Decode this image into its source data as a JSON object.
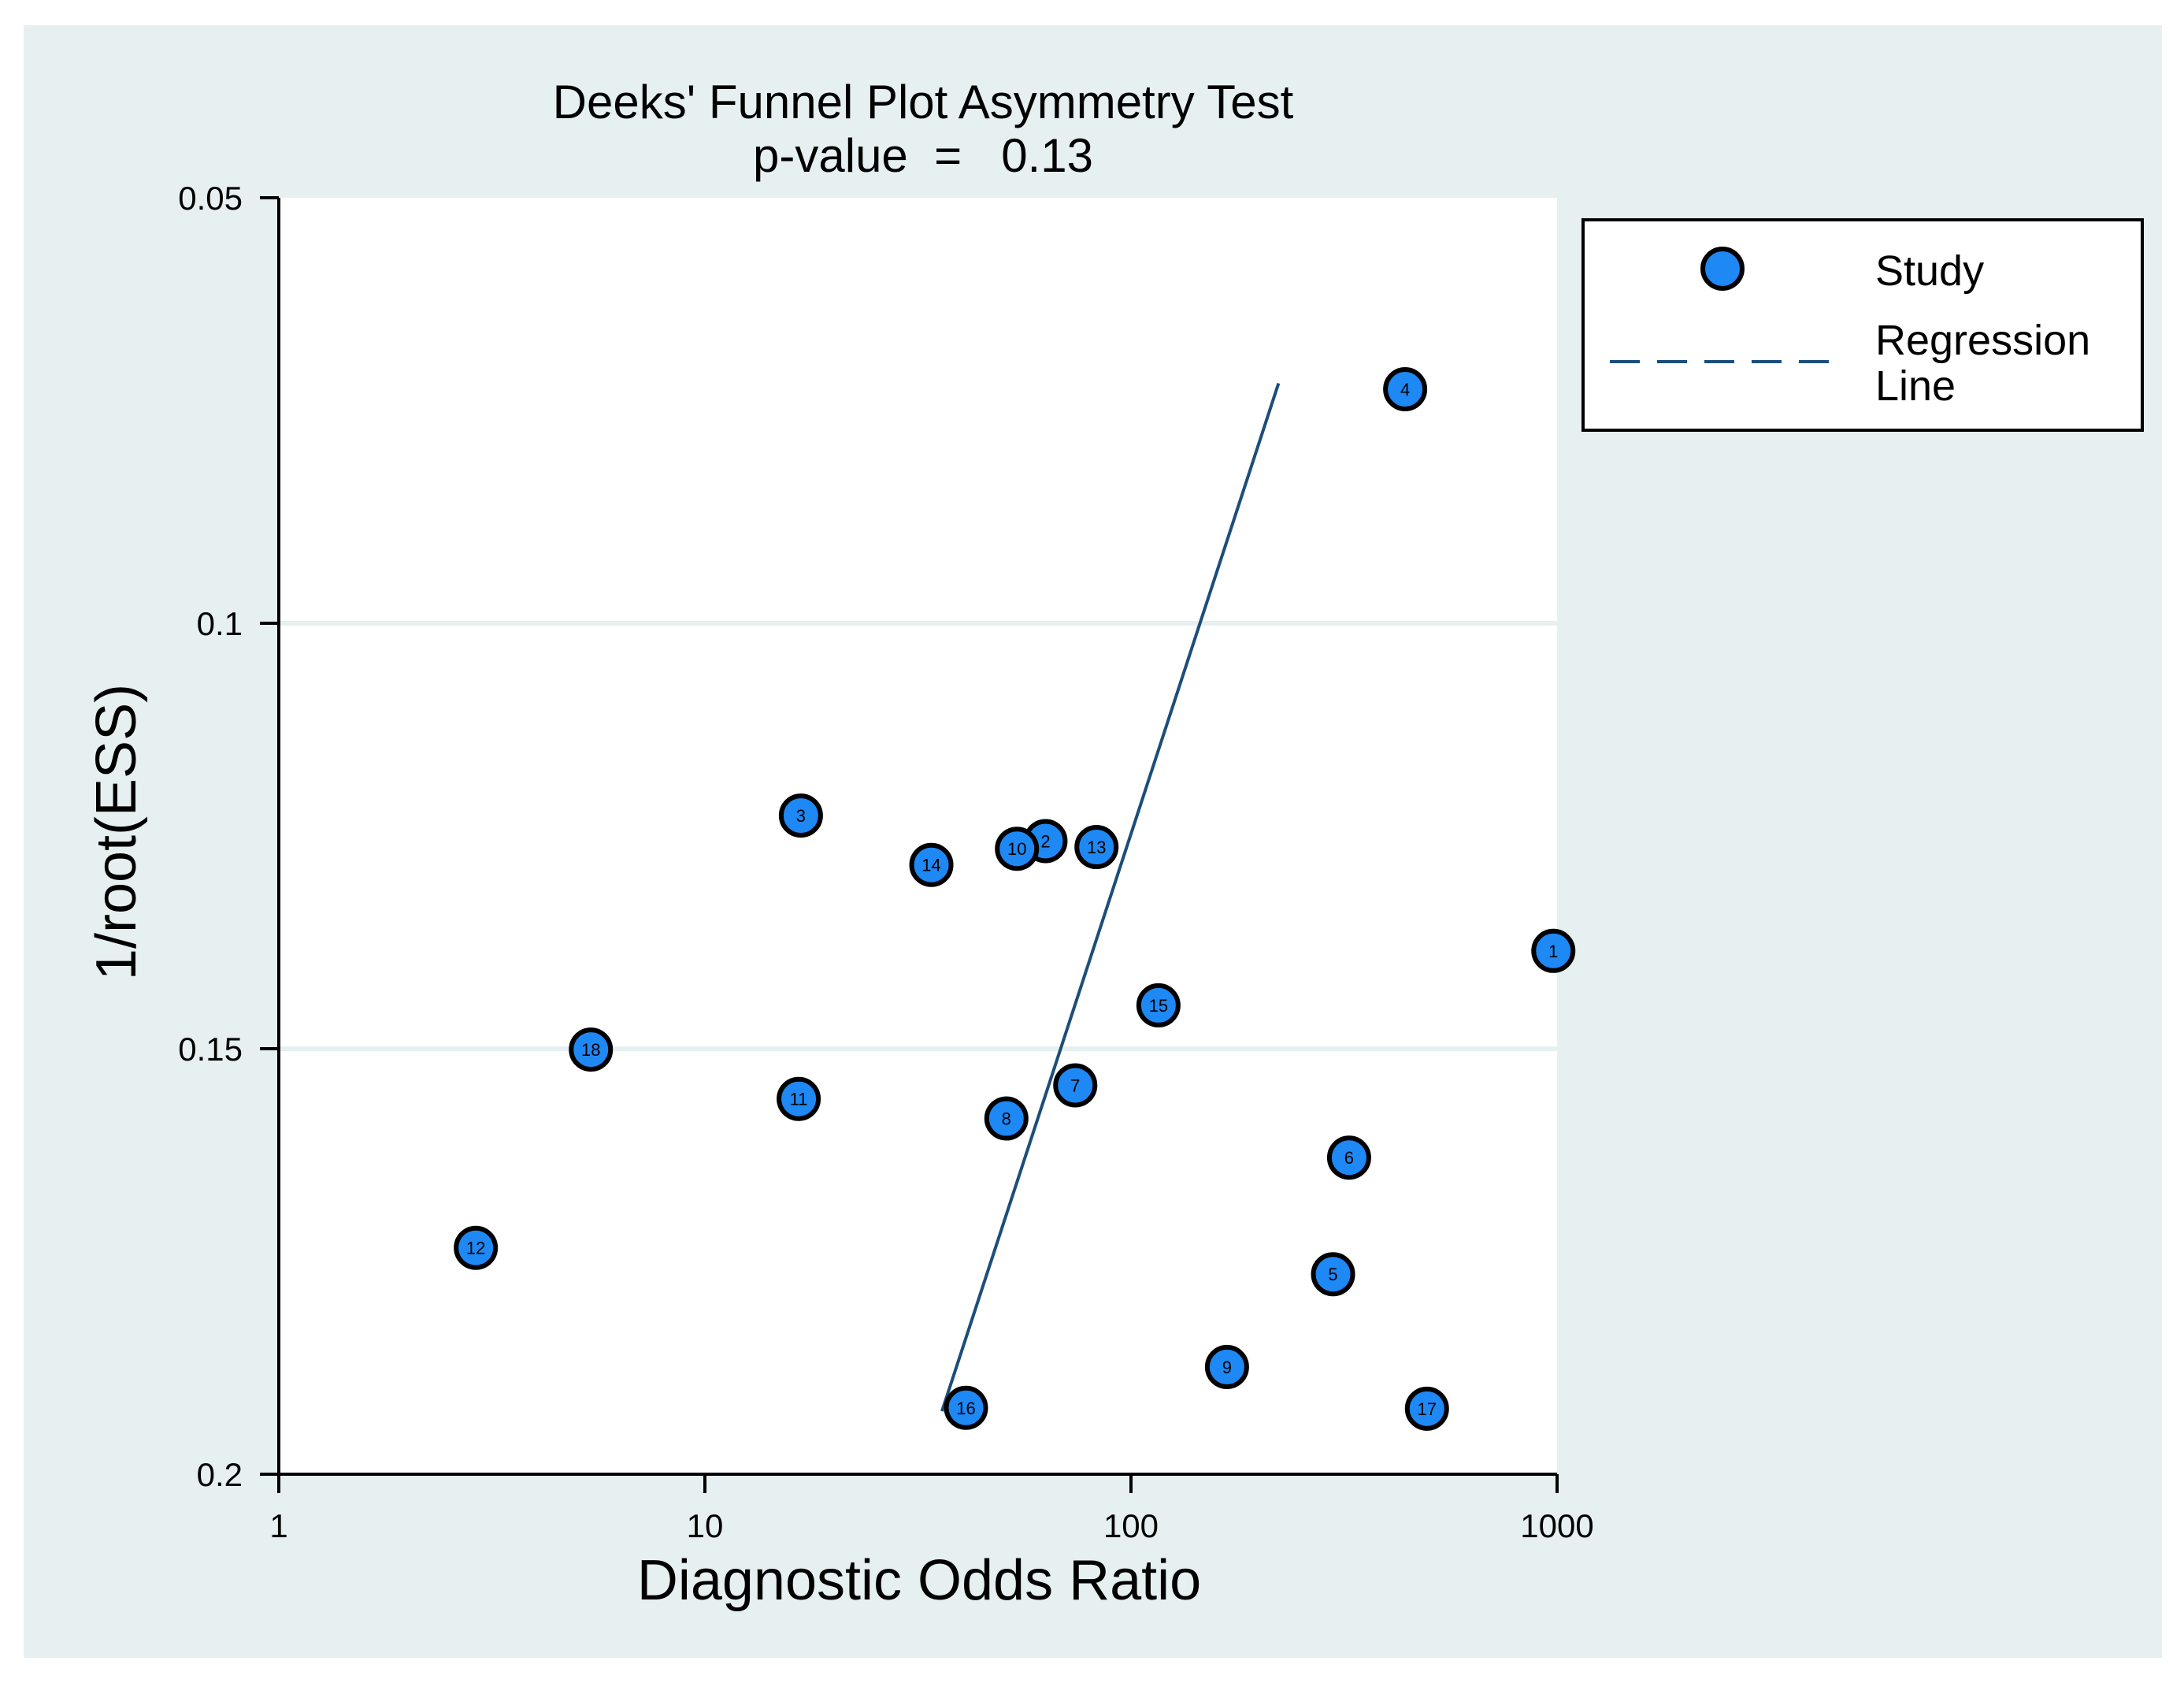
{
  "chart_data": {
    "type": "scatter",
    "title": "Deeks' Funnel Plot Asymmetry Test",
    "subtitle": "p-value  =   0.13",
    "xlabel": "Diagnostic Odds Ratio",
    "ylabel": "1/root(ESS)",
    "x_scale": "log",
    "xlim": [
      1,
      1000
    ],
    "ylim": [
      0.05,
      0.2
    ],
    "y_inverted": true,
    "x_ticks": [
      1,
      10,
      100,
      1000
    ],
    "x_tick_labels": [
      "1",
      "10",
      "100",
      "1000"
    ],
    "y_ticks": [
      0.05,
      0.1,
      0.15,
      0.2
    ],
    "y_tick_labels": [
      "0.05",
      "0.1",
      "0.15",
      "0.2"
    ],
    "gridlines_y": [
      0.1,
      0.15
    ],
    "legend_position": "top-right",
    "series": [
      {
        "name": "Study",
        "color": "#1E88F5",
        "points": [
          {
            "label": "1",
            "x": 980,
            "y": 0.1385
          },
          {
            "label": "2",
            "x": 63,
            "y": 0.1256
          },
          {
            "label": "3",
            "x": 16.8,
            "y": 0.1226
          },
          {
            "label": "4",
            "x": 440,
            "y": 0.0725
          },
          {
            "label": "5",
            "x": 298,
            "y": 0.1765
          },
          {
            "label": "6",
            "x": 325,
            "y": 0.1628
          },
          {
            "label": "7",
            "x": 74,
            "y": 0.1543
          },
          {
            "label": "8",
            "x": 51,
            "y": 0.1582
          },
          {
            "label": "9",
            "x": 168,
            "y": 0.1874
          },
          {
            "label": "10",
            "x": 54,
            "y": 0.1265
          },
          {
            "label": "11",
            "x": 16.6,
            "y": 0.1559
          },
          {
            "label": "12",
            "x": 2.9,
            "y": 0.1734
          },
          {
            "label": "13",
            "x": 83,
            "y": 0.1263
          },
          {
            "label": "14",
            "x": 34,
            "y": 0.1284
          },
          {
            "label": "15",
            "x": 116,
            "y": 0.1449
          },
          {
            "label": "16",
            "x": 41,
            "y": 0.1922
          },
          {
            "label": "17",
            "x": 495,
            "y": 0.1923
          },
          {
            "label": "18",
            "x": 5.4,
            "y": 0.1501
          }
        ]
      },
      {
        "name": "Regression Line",
        "style": "dashed",
        "color": "#1C4E7A",
        "points": [
          {
            "x": 36,
            "y": 0.1926
          },
          {
            "x": 222,
            "y": 0.0718
          }
        ]
      }
    ],
    "legend": [
      {
        "marker": "circle",
        "label": "Study"
      },
      {
        "marker": "dashed-line",
        "label_lines": [
          "Regression",
          "Line"
        ]
      }
    ],
    "colors": {
      "outer_background": "#E6F0F0",
      "plot_background": "#FFFFFF",
      "gridline": "#E6F0F0",
      "axis": "#000000",
      "point_fill": "#1E88F5",
      "regression": "#1C4E7A"
    }
  }
}
